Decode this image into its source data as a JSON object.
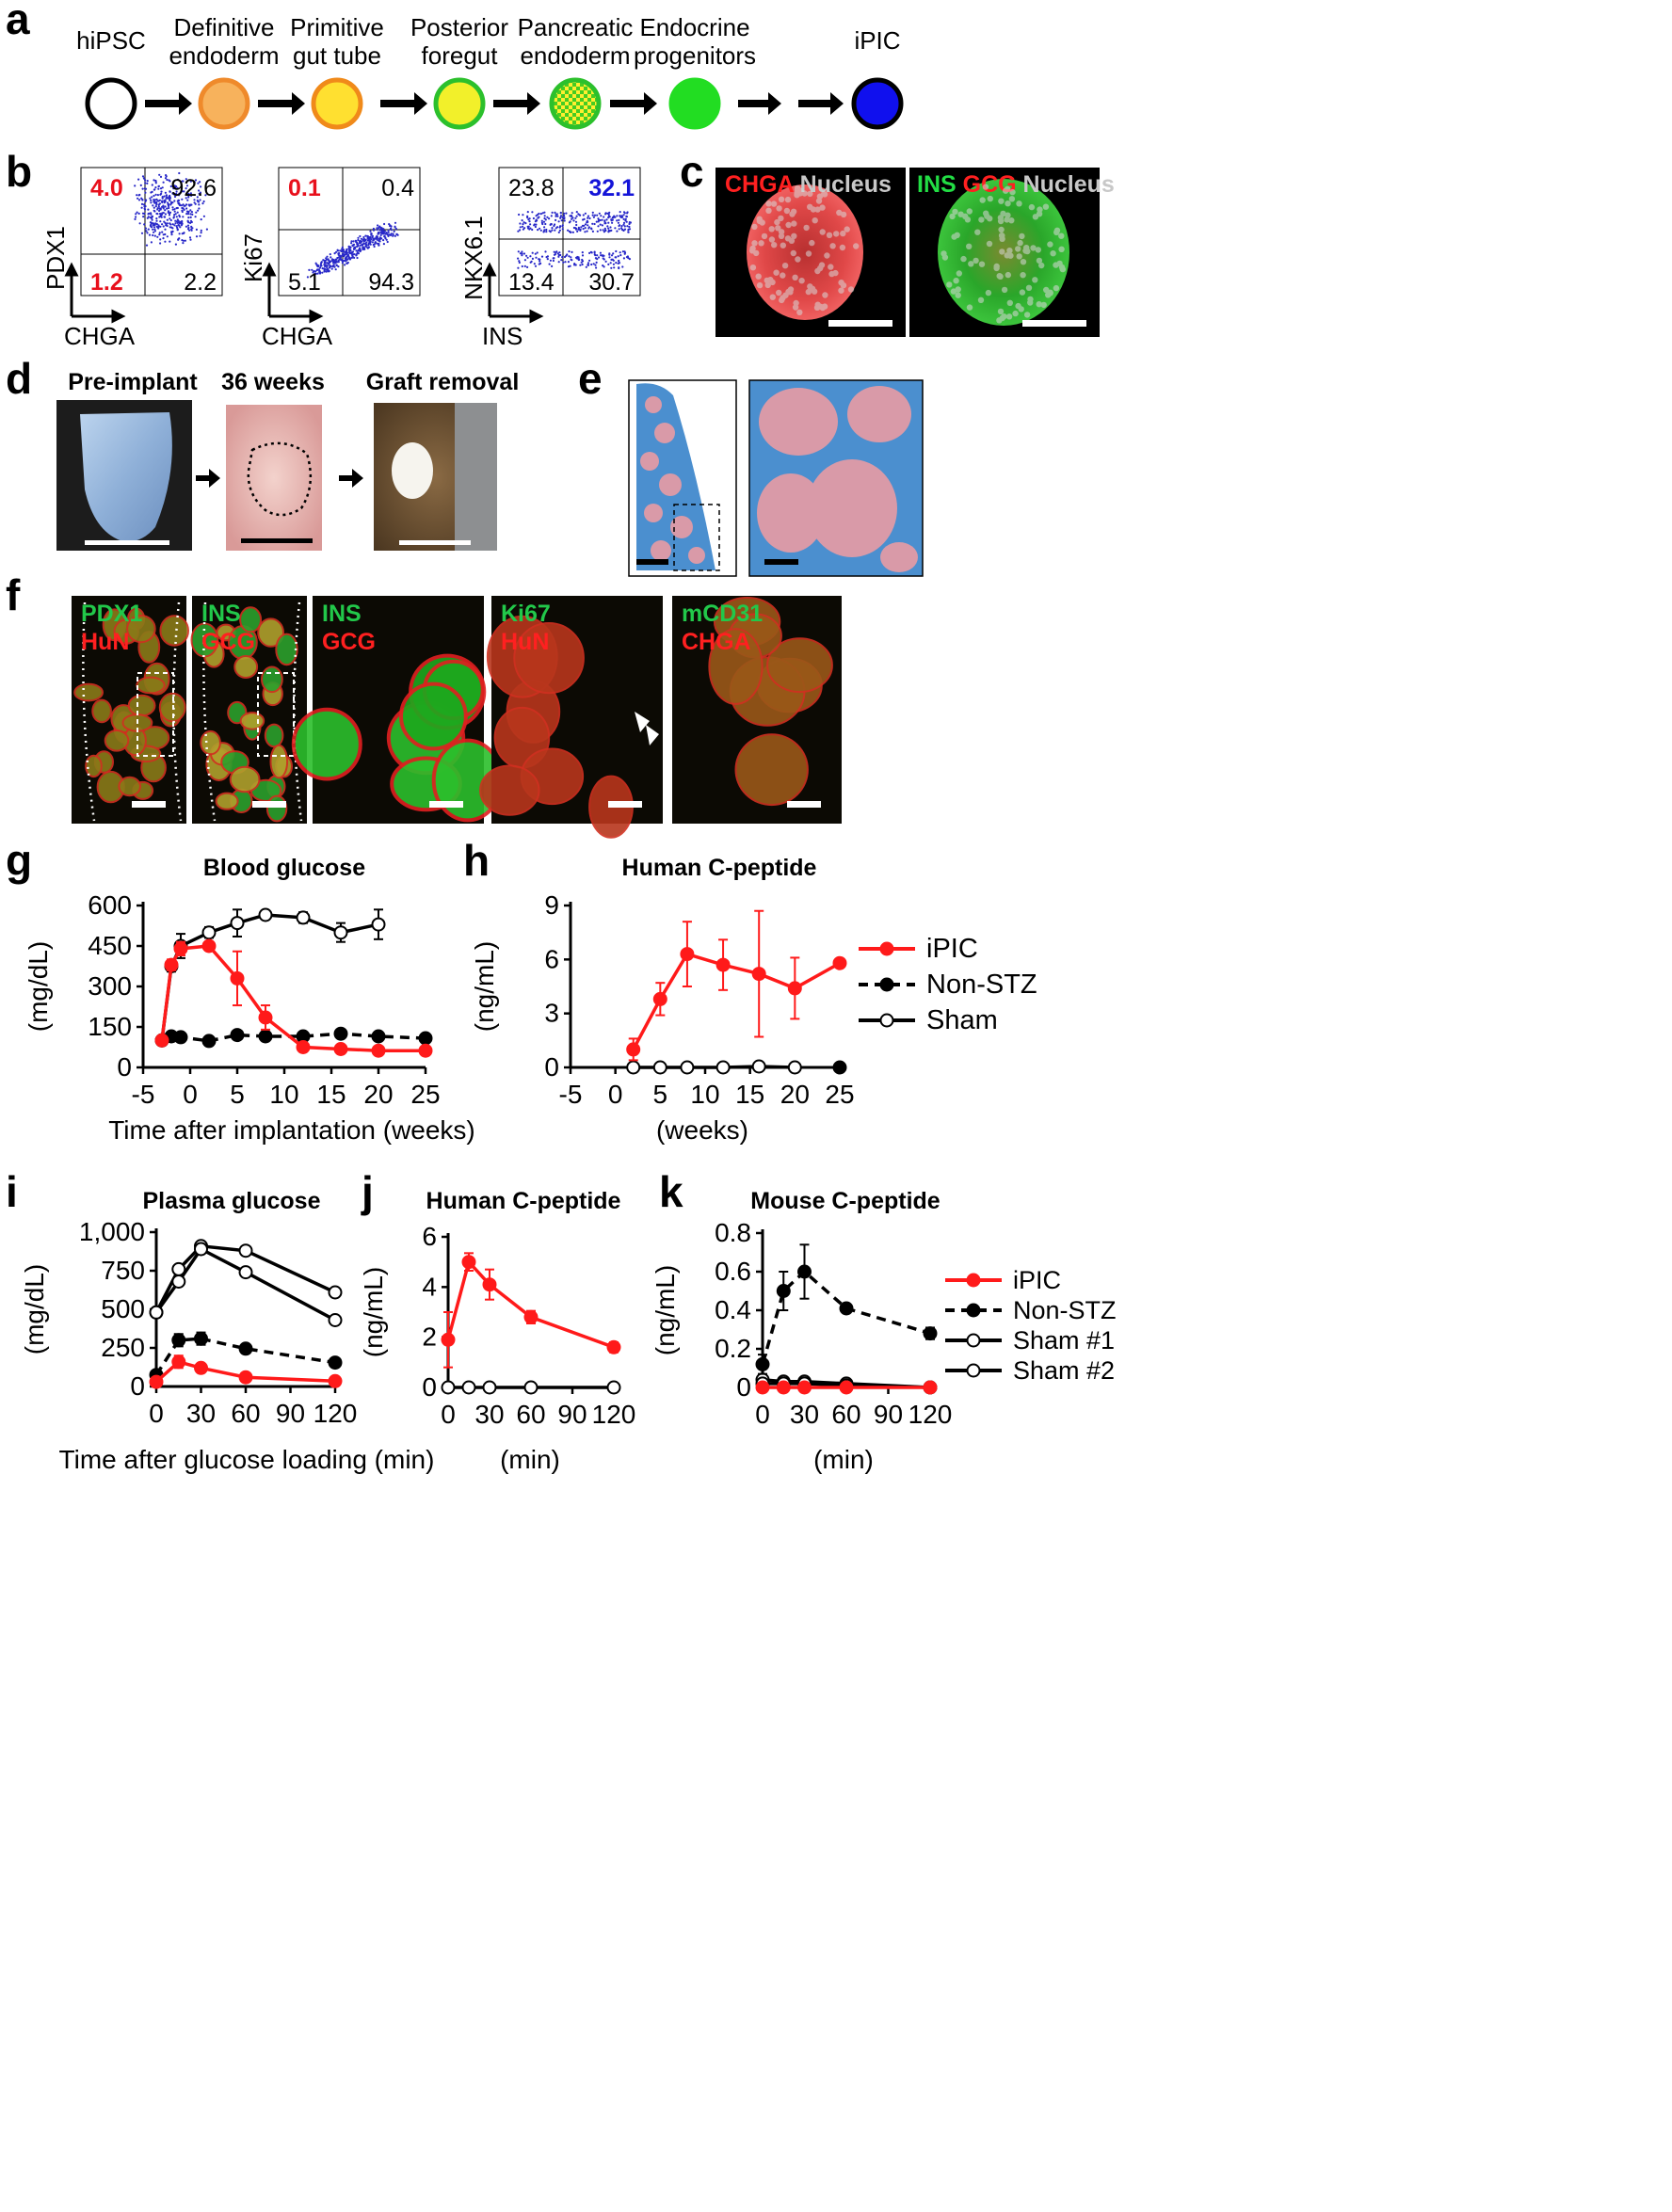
{
  "panel_letters": [
    "a",
    "b",
    "c",
    "d",
    "e",
    "f",
    "g",
    "h",
    "i",
    "j",
    "k"
  ],
  "panel_a": {
    "stages": [
      {
        "label": [
          "hiPSC"
        ],
        "fill": "#ffffff",
        "stroke": "#000000"
      },
      {
        "label": [
          "Definitive",
          "endoderm"
        ],
        "fill": "#f7b25c",
        "stroke": "#ef8a2b"
      },
      {
        "label": [
          "Primitive",
          "gut tube"
        ],
        "fill": "#ffe030",
        "stroke": "#f08a1a"
      },
      {
        "label": [
          "Posterior",
          "foregut"
        ],
        "fill": "#f2f02a",
        "stroke": "#2cc02c"
      },
      {
        "label": [
          "Pancreatic",
          "endoderm"
        ],
        "fill": "#9fe040",
        "stroke": "#2cc02c"
      },
      {
        "label": [
          "Endocrine",
          "progenitors"
        ],
        "fill": "#22dd22",
        "stroke": "#22dd22"
      },
      {
        "label": [
          "iPIC"
        ],
        "fill": "#1010ee",
        "stroke": "#000000"
      }
    ]
  },
  "panel_b": {
    "plots": [
      {
        "ylab": "PDX1",
        "xlab": "CHGA",
        "q": [
          "4.0",
          "92.6",
          "1.2",
          "2.2"
        ],
        "qcolor": [
          "#e8101c",
          "#000000",
          "#e8101c",
          "#000000"
        ],
        "qbold": [
          true,
          false,
          true,
          false
        ]
      },
      {
        "ylab": "Ki67",
        "xlab": "CHGA",
        "q": [
          "0.1",
          "0.4",
          "5.1",
          "94.3"
        ],
        "qcolor": [
          "#e8101c",
          "#000000",
          "#000000",
          "#000000"
        ],
        "qbold": [
          true,
          false,
          false,
          false
        ]
      },
      {
        "ylab": "NKX6.1",
        "xlab": "INS",
        "q": [
          "23.8",
          "32.1",
          "13.4",
          "30.7"
        ],
        "qcolor": [
          "#000000",
          "#1414d8",
          "#000000",
          "#000000"
        ],
        "qbold": [
          false,
          true,
          false,
          false
        ]
      }
    ]
  },
  "panel_c": {
    "images": [
      {
        "labels": [
          {
            "t": "CHGA",
            "c": "#ff2020"
          },
          {
            "t": " Nucleus",
            "c": "#c8c8c8"
          }
        ]
      },
      {
        "labels": [
          {
            "t": "INS",
            "c": "#22dd44"
          },
          {
            "t": " GCG",
            "c": "#ff2020"
          },
          {
            "t": " Nucleus",
            "c": "#c8c8c8"
          }
        ]
      }
    ]
  },
  "panel_d": {
    "titles": [
      "Pre-implant",
      "36 weeks",
      "Graft removal"
    ]
  },
  "panel_f": {
    "images": [
      {
        "g": "PDX1",
        "r": "HuN"
      },
      {
        "g": "INS",
        "r": "GCG"
      },
      {
        "g": "INS",
        "r": "GCG"
      },
      {
        "g": "Ki67",
        "r": "HuN"
      },
      {
        "g": "mCD31",
        "r": "CHGA"
      }
    ]
  },
  "chart_data": [
    {
      "id": "g",
      "type": "line",
      "title": "Blood glucose",
      "ylabel": "(mg/dL)",
      "xlabel": "Time after implantation (weeks)",
      "xlim": [
        -5,
        25
      ],
      "ylim": [
        0,
        600
      ],
      "xticks": [
        "-5",
        "0",
        "5",
        "10",
        "15",
        "20",
        "25"
      ],
      "yticks": [
        "0",
        "150",
        "300",
        "450",
        "600"
      ],
      "series": [
        {
          "style": "sham",
          "x": [
            -3,
            -2,
            -1,
            2,
            5,
            8,
            12,
            16,
            20
          ],
          "y": [
            100,
            375,
            450,
            500,
            535,
            565,
            555,
            500,
            530
          ],
          "err": [
            0,
            20,
            45,
            20,
            50,
            15,
            20,
            35,
            55
          ]
        },
        {
          "style": "nonstz",
          "x": [
            -3,
            -2,
            -1,
            2,
            5,
            8,
            12,
            16,
            20,
            25
          ],
          "y": [
            100,
            115,
            112,
            98,
            120,
            115,
            115,
            125,
            115,
            108
          ],
          "err": [
            0,
            8,
            8,
            8,
            8,
            8,
            8,
            8,
            8,
            8
          ]
        },
        {
          "style": "ipic",
          "x": [
            -3,
            -2,
            -1,
            2,
            5,
            8,
            12,
            16,
            20,
            25
          ],
          "y": [
            100,
            380,
            440,
            450,
            330,
            185,
            75,
            68,
            62,
            62
          ],
          "err": [
            0,
            20,
            25,
            15,
            100,
            45,
            15,
            12,
            10,
            10
          ]
        }
      ]
    },
    {
      "id": "h",
      "type": "line",
      "title": "Human C-peptide",
      "ylabel": "(ng/mL)",
      "xlabel": "(weeks)",
      "xlim": [
        -5,
        25
      ],
      "ylim": [
        0,
        9
      ],
      "xticks": [
        "-5",
        "0",
        "5",
        "10",
        "15",
        "20",
        "25"
      ],
      "yticks": [
        "0",
        "3",
        "6",
        "9"
      ],
      "legend": [
        {
          "name": "iPIC",
          "style": "ipic"
        },
        {
          "name": "Non-STZ",
          "style": "nonstz"
        },
        {
          "name": "Sham",
          "style": "sham"
        }
      ],
      "series": [
        {
          "style": "nonstz",
          "x": [
            25
          ],
          "y": [
            0
          ],
          "err": [
            0
          ]
        },
        {
          "style": "sham",
          "x": [
            2,
            5,
            8,
            12,
            16,
            20
          ],
          "y": [
            0,
            0,
            0,
            0,
            0.05,
            0
          ],
          "err": [
            0,
            0,
            0,
            0,
            0,
            0
          ]
        },
        {
          "style": "ipic",
          "x": [
            2,
            5,
            8,
            12,
            16,
            20,
            25
          ],
          "y": [
            1.0,
            3.8,
            6.3,
            5.7,
            5.2,
            4.4,
            5.8
          ],
          "err": [
            0.6,
            0.9,
            1.8,
            1.4,
            3.5,
            1.7,
            0.2
          ]
        }
      ]
    },
    {
      "id": "i",
      "type": "line",
      "title": "Plasma glucose",
      "ylabel": "(mg/dL)",
      "xlabel": "Time after glucose loading (min)",
      "xlim": [
        0,
        120
      ],
      "ylim": [
        0,
        1000
      ],
      "xticks": [
        "0",
        "30",
        "60",
        "90",
        "120"
      ],
      "yticks": [
        "0",
        "250",
        "500",
        "750",
        "1,000"
      ],
      "series": [
        {
          "style": "sham",
          "x": [
            0,
            15,
            30,
            60,
            120
          ],
          "y": [
            480,
            760,
            910,
            880,
            610
          ],
          "err": [
            0,
            0,
            0,
            0,
            0
          ]
        },
        {
          "style": "sham",
          "x": [
            0,
            15,
            30,
            60,
            120
          ],
          "y": [
            480,
            680,
            890,
            740,
            430
          ],
          "err": [
            0,
            0,
            0,
            0,
            0
          ]
        },
        {
          "style": "nonstz",
          "x": [
            0,
            15,
            30,
            60,
            120
          ],
          "y": [
            75,
            300,
            310,
            245,
            155
          ],
          "err": [
            10,
            40,
            40,
            20,
            15
          ]
        },
        {
          "style": "ipic",
          "x": [
            0,
            15,
            30,
            60,
            120
          ],
          "y": [
            30,
            160,
            120,
            60,
            35
          ],
          "err": [
            5,
            40,
            25,
            10,
            5
          ]
        }
      ]
    },
    {
      "id": "j",
      "type": "line",
      "title": "Human C-peptide",
      "ylabel": "(ng/mL)",
      "xlabel": "(min)",
      "xlim": [
        0,
        120
      ],
      "ylim": [
        0,
        6
      ],
      "xticks": [
        "0",
        "30",
        "60",
        "90",
        "120"
      ],
      "yticks": [
        "0",
        "2",
        "4",
        "6"
      ],
      "series": [
        {
          "style": "sham",
          "x": [
            0,
            15,
            30,
            60,
            120
          ],
          "y": [
            0,
            0,
            0,
            0,
            0
          ],
          "err": [
            0,
            0,
            0,
            0,
            0
          ]
        },
        {
          "style": "ipic",
          "x": [
            0,
            15,
            30,
            60,
            120
          ],
          "y": [
            1.9,
            5.0,
            4.1,
            2.8,
            1.6
          ],
          "err": [
            1.1,
            0.35,
            0.6,
            0.25,
            0.2
          ]
        }
      ]
    },
    {
      "id": "k",
      "type": "line",
      "title": "Mouse C-peptide",
      "ylabel": "(ng/mL)",
      "xlabel": "(min)",
      "xlim": [
        0,
        120
      ],
      "ylim": [
        0,
        0.8
      ],
      "xticks": [
        "0",
        "30",
        "60",
        "90",
        "120"
      ],
      "yticks": [
        "0",
        "0.2",
        "0.4",
        "0.6",
        "0.8"
      ],
      "legend": [
        {
          "name": "iPIC",
          "style": "ipic"
        },
        {
          "name": "Non-STZ",
          "style": "nonstz"
        },
        {
          "name": "Sham #1",
          "style": "sham"
        },
        {
          "name": "Sham #2",
          "style": "sham"
        }
      ],
      "series": [
        {
          "style": "sham",
          "x": [
            0,
            15,
            30,
            60,
            120
          ],
          "y": [
            0.04,
            0.03,
            0.03,
            0.02,
            0
          ],
          "err": [
            0,
            0,
            0,
            0,
            0
          ]
        },
        {
          "style": "sham",
          "x": [
            0,
            15,
            30,
            60,
            120
          ],
          "y": [
            0.02,
            0.02,
            0.02,
            0.01,
            0
          ],
          "err": [
            0,
            0,
            0,
            0,
            0
          ]
        },
        {
          "style": "ipic",
          "x": [
            0,
            15,
            30,
            60,
            120
          ],
          "y": [
            0,
            0,
            0,
            0,
            0
          ],
          "err": [
            0,
            0,
            0,
            0,
            0
          ]
        },
        {
          "style": "nonstz",
          "x": [
            0,
            15,
            30,
            60,
            120
          ],
          "y": [
            0.12,
            0.5,
            0.6,
            0.41,
            0.28
          ],
          "err": [
            0.05,
            0.1,
            0.14,
            0.02,
            0.03
          ]
        }
      ]
    }
  ]
}
